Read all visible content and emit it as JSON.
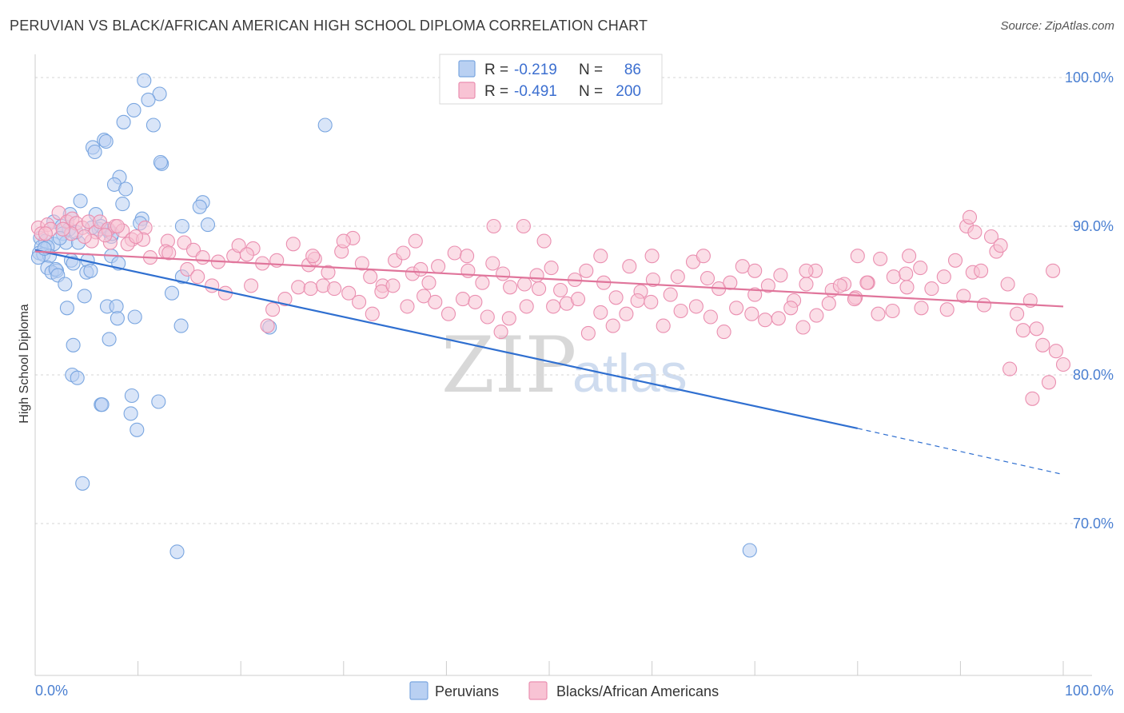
{
  "header": {
    "title": "PERUVIAN VS BLACK/AFRICAN AMERICAN HIGH SCHOOL DIPLOMA CORRELATION CHART",
    "source": "Source: ZipAtlas.com"
  },
  "watermark": {
    "zip": "ZIP",
    "atlas": "atlas"
  },
  "legend": {
    "r_label": "R =",
    "n_label": "N =",
    "rows": [
      {
        "series": "Peruvians",
        "r": "-0.219",
        "n": "86",
        "color": "#7aa6e0",
        "fill": "#b9d0f2"
      },
      {
        "series": "Blacks/African Americans",
        "r": "-0.491",
        "n": "200",
        "color": "#ea8fb0",
        "fill": "#f8c3d4"
      }
    ]
  },
  "chart_data": {
    "type": "scatter",
    "ylabel": "High School Diploma",
    "xlabel": "",
    "xlim": [
      0,
      100
    ],
    "ylim": [
      60.5,
      101.0
    ],
    "x_tick_labels": [
      "0.0%",
      "100.0%"
    ],
    "y_ticks": [
      {
        "value": 100,
        "label": "100.0%"
      },
      {
        "value": 90,
        "label": "90.0%"
      },
      {
        "value": 80,
        "label": "80.0%"
      },
      {
        "value": 70,
        "label": "70.0%"
      }
    ],
    "grid": "horizontal-dashed",
    "series": [
      {
        "name": "Peruvians",
        "color": "#7aa6e0",
        "trend": {
          "x": [
            0,
            80,
            100
          ],
          "y": [
            88.4,
            76.4,
            73.3
          ],
          "solid_until": 80,
          "line_color": "#2f6fd0"
        },
        "points": [
          [
            10.6,
            99.8
          ],
          [
            12.1,
            98.9
          ],
          [
            11.0,
            98.5
          ],
          [
            9.6,
            97.8
          ],
          [
            8.6,
            97.0
          ],
          [
            11.5,
            96.8
          ],
          [
            28.2,
            96.8
          ],
          [
            6.7,
            95.8
          ],
          [
            6.9,
            95.7
          ],
          [
            5.6,
            95.3
          ],
          [
            5.8,
            95.0
          ],
          [
            12.3,
            94.2
          ],
          [
            12.2,
            94.3
          ],
          [
            8.2,
            93.3
          ],
          [
            7.7,
            92.8
          ],
          [
            8.8,
            92.5
          ],
          [
            16.3,
            91.6
          ],
          [
            4.4,
            91.7
          ],
          [
            8.5,
            91.5
          ],
          [
            16.0,
            91.3
          ],
          [
            3.4,
            90.8
          ],
          [
            5.9,
            90.8
          ],
          [
            10.4,
            90.5
          ],
          [
            1.8,
            90.3
          ],
          [
            10.2,
            90.2
          ],
          [
            14.3,
            90.0
          ],
          [
            16.8,
            90.1
          ],
          [
            2.6,
            90.0
          ],
          [
            3.3,
            89.8
          ],
          [
            6.2,
            89.8
          ],
          [
            7.1,
            89.7
          ],
          [
            6.4,
            90.0
          ],
          [
            7.4,
            89.3
          ],
          [
            7.5,
            89.5
          ],
          [
            2.7,
            89.5
          ],
          [
            0.5,
            89.2
          ],
          [
            1.0,
            89.0
          ],
          [
            3.0,
            88.9
          ],
          [
            4.2,
            88.9
          ],
          [
            0.6,
            88.6
          ],
          [
            1.8,
            88.8
          ],
          [
            1.2,
            88.6
          ],
          [
            0.4,
            88.2
          ],
          [
            0.8,
            88.1
          ],
          [
            1.4,
            88.0
          ],
          [
            0.3,
            87.9
          ],
          [
            7.4,
            88.0
          ],
          [
            3.5,
            87.7
          ],
          [
            3.7,
            87.5
          ],
          [
            5.1,
            87.7
          ],
          [
            8.1,
            87.5
          ],
          [
            1.2,
            87.2
          ],
          [
            2.1,
            87.0
          ],
          [
            1.6,
            86.9
          ],
          [
            2.0,
            87.1
          ],
          [
            5.0,
            86.9
          ],
          [
            5.4,
            87.0
          ],
          [
            2.2,
            86.7
          ],
          [
            2.9,
            86.1
          ],
          [
            14.3,
            86.6
          ],
          [
            13.3,
            85.5
          ],
          [
            4.8,
            85.3
          ],
          [
            3.1,
            84.5
          ],
          [
            7.0,
            84.6
          ],
          [
            7.9,
            84.6
          ],
          [
            8.0,
            83.8
          ],
          [
            9.7,
            83.9
          ],
          [
            14.2,
            83.3
          ],
          [
            22.8,
            83.2
          ],
          [
            7.2,
            82.4
          ],
          [
            3.7,
            82.0
          ],
          [
            3.6,
            80.0
          ],
          [
            4.1,
            79.8
          ],
          [
            9.4,
            78.6
          ],
          [
            12.0,
            78.2
          ],
          [
            6.4,
            78.0
          ],
          [
            6.5,
            78.0
          ],
          [
            9.3,
            77.4
          ],
          [
            9.9,
            76.3
          ],
          [
            4.6,
            72.7
          ],
          [
            13.8,
            68.1
          ],
          [
            69.5,
            68.2
          ],
          [
            0.9,
            88.5
          ],
          [
            2.4,
            89.2
          ],
          [
            4.0,
            89.6
          ],
          [
            5.5,
            89.9
          ]
        ]
      },
      {
        "name": "Blacks/African Americans",
        "color": "#ea8fb0",
        "trend": {
          "x": [
            0,
            100
          ],
          "y": [
            88.3,
            84.6
          ],
          "line_color": "#e0759b"
        },
        "points": [
          [
            0.3,
            89.9
          ],
          [
            0.6,
            89.5
          ],
          [
            1.2,
            90.1
          ],
          [
            1.5,
            89.8
          ],
          [
            2.3,
            90.9
          ],
          [
            3.1,
            90.3
          ],
          [
            3.6,
            90.5
          ],
          [
            4.0,
            90.2
          ],
          [
            4.6,
            89.9
          ],
          [
            5.2,
            90.3
          ],
          [
            5.9,
            89.6
          ],
          [
            6.3,
            90.3
          ],
          [
            7.1,
            89.8
          ],
          [
            7.8,
            90.0
          ],
          [
            8.5,
            89.7
          ],
          [
            9.4,
            89.1
          ],
          [
            10.7,
            89.9
          ],
          [
            3.5,
            89.5
          ],
          [
            5.5,
            89.0
          ],
          [
            7.3,
            88.9
          ],
          [
            9.0,
            88.8
          ],
          [
            10.5,
            89.1
          ],
          [
            12.9,
            89.0
          ],
          [
            14.5,
            88.9
          ],
          [
            11.2,
            87.9
          ],
          [
            12.7,
            88.3
          ],
          [
            15.4,
            88.4
          ],
          [
            16.3,
            87.9
          ],
          [
            17.8,
            87.6
          ],
          [
            19.3,
            88.0
          ],
          [
            19.8,
            88.7
          ],
          [
            21.2,
            88.5
          ],
          [
            20.6,
            88.1
          ],
          [
            22.1,
            87.5
          ],
          [
            23.5,
            87.7
          ],
          [
            25.1,
            88.8
          ],
          [
            26.6,
            87.4
          ],
          [
            27.2,
            87.8
          ],
          [
            28.5,
            86.9
          ],
          [
            29.8,
            88.3
          ],
          [
            30.9,
            89.2
          ],
          [
            31.8,
            87.5
          ],
          [
            32.6,
            86.6
          ],
          [
            33.8,
            86.0
          ],
          [
            35.0,
            87.7
          ],
          [
            35.8,
            88.2
          ],
          [
            36.7,
            86.8
          ],
          [
            37.5,
            87.1
          ],
          [
            38.3,
            86.2
          ],
          [
            39.2,
            87.3
          ],
          [
            40.8,
            88.2
          ],
          [
            42.1,
            87.0
          ],
          [
            43.5,
            86.2
          ],
          [
            44.5,
            87.5
          ],
          [
            45.5,
            86.8
          ],
          [
            46.2,
            85.9
          ],
          [
            47.6,
            86.1
          ],
          [
            48.8,
            86.7
          ],
          [
            50.2,
            87.2
          ],
          [
            51.1,
            85.7
          ],
          [
            52.5,
            86.4
          ],
          [
            53.6,
            87.0
          ],
          [
            55.3,
            86.2
          ],
          [
            56.5,
            85.2
          ],
          [
            57.8,
            87.3
          ],
          [
            58.9,
            85.6
          ],
          [
            60.1,
            86.4
          ],
          [
            61.8,
            85.4
          ],
          [
            62.5,
            86.6
          ],
          [
            64.0,
            87.6
          ],
          [
            65.4,
            86.5
          ],
          [
            66.5,
            85.8
          ],
          [
            67.6,
            86.2
          ],
          [
            68.8,
            87.3
          ],
          [
            70.0,
            85.4
          ],
          [
            71.3,
            86.0
          ],
          [
            72.5,
            86.7
          ],
          [
            73.8,
            85.0
          ],
          [
            75.0,
            86.1
          ],
          [
            75.9,
            87.0
          ],
          [
            77.5,
            85.7
          ],
          [
            78.7,
            86.1
          ],
          [
            79.8,
            85.2
          ],
          [
            81.0,
            86.2
          ],
          [
            82.2,
            87.8
          ],
          [
            83.5,
            86.6
          ],
          [
            84.8,
            85.9
          ],
          [
            86.1,
            87.2
          ],
          [
            87.2,
            85.8
          ],
          [
            88.4,
            86.6
          ],
          [
            89.5,
            87.7
          ],
          [
            90.3,
            85.3
          ],
          [
            91.2,
            86.9
          ],
          [
            92.3,
            84.7
          ],
          [
            93.5,
            88.3
          ],
          [
            94.6,
            86.1
          ],
          [
            95.5,
            84.1
          ],
          [
            96.8,
            85.0
          ],
          [
            98.0,
            82.0
          ],
          [
            98.6,
            79.5
          ],
          [
            99.3,
            81.6
          ],
          [
            100.0,
            80.7
          ],
          [
            97.4,
            83.1
          ],
          [
            96.1,
            83.0
          ],
          [
            94.8,
            80.4
          ],
          [
            97.0,
            78.4
          ],
          [
            1.0,
            89.5
          ],
          [
            2.7,
            89.8
          ],
          [
            4.8,
            89.3
          ],
          [
            6.8,
            89.4
          ],
          [
            8.0,
            90.0
          ],
          [
            9.8,
            89.3
          ],
          [
            13.0,
            88.2
          ],
          [
            14.8,
            87.1
          ],
          [
            15.8,
            86.6
          ],
          [
            17.2,
            86.0
          ],
          [
            18.5,
            85.5
          ],
          [
            21.0,
            86.0
          ],
          [
            23.1,
            84.4
          ],
          [
            22.6,
            83.3
          ],
          [
            24.3,
            85.1
          ],
          [
            25.6,
            85.9
          ],
          [
            26.8,
            85.8
          ],
          [
            28.0,
            86.0
          ],
          [
            29.1,
            85.8
          ],
          [
            30.5,
            85.5
          ],
          [
            31.5,
            84.9
          ],
          [
            32.8,
            84.1
          ],
          [
            33.7,
            85.6
          ],
          [
            34.8,
            86.0
          ],
          [
            36.2,
            84.6
          ],
          [
            37.8,
            85.3
          ],
          [
            38.9,
            84.9
          ],
          [
            40.2,
            84.1
          ],
          [
            41.6,
            85.1
          ],
          [
            42.8,
            84.9
          ],
          [
            44.0,
            83.9
          ],
          [
            45.3,
            82.9
          ],
          [
            46.1,
            83.8
          ],
          [
            47.8,
            84.6
          ],
          [
            49.0,
            85.8
          ],
          [
            50.4,
            84.6
          ],
          [
            51.7,
            84.8
          ],
          [
            52.8,
            85.1
          ],
          [
            53.8,
            82.8
          ],
          [
            55.0,
            84.2
          ],
          [
            56.2,
            83.3
          ],
          [
            57.5,
            84.1
          ],
          [
            58.6,
            85.0
          ],
          [
            59.9,
            84.9
          ],
          [
            61.1,
            83.3
          ],
          [
            62.8,
            84.3
          ],
          [
            64.3,
            84.6
          ],
          [
            65.7,
            83.9
          ],
          [
            67.0,
            82.9
          ],
          [
            68.2,
            84.5
          ],
          [
            69.7,
            84.1
          ],
          [
            71.0,
            83.7
          ],
          [
            72.3,
            83.8
          ],
          [
            73.5,
            84.5
          ],
          [
            74.7,
            83.2
          ],
          [
            76.0,
            84.0
          ],
          [
            77.2,
            84.8
          ],
          [
            78.3,
            86.0
          ],
          [
            79.7,
            85.1
          ],
          [
            80.9,
            86.2
          ],
          [
            82.0,
            84.1
          ],
          [
            83.4,
            84.3
          ],
          [
            84.7,
            86.8
          ],
          [
            86.2,
            84.5
          ],
          [
            88.7,
            84.4
          ],
          [
            90.6,
            90.0
          ],
          [
            90.9,
            90.6
          ],
          [
            91.4,
            89.6
          ],
          [
            93.0,
            89.3
          ],
          [
            93.9,
            88.7
          ],
          [
            44.6,
            90.0
          ],
          [
            47.5,
            90.0
          ],
          [
            49.5,
            89.0
          ],
          [
            30.0,
            89.0
          ],
          [
            27.0,
            88.0
          ],
          [
            37.0,
            89.0
          ],
          [
            42.0,
            88.0
          ],
          [
            55.0,
            88.0
          ],
          [
            60.0,
            88.0
          ],
          [
            65.0,
            88.0
          ],
          [
            70.0,
            87.0
          ],
          [
            75.0,
            87.0
          ],
          [
            80.0,
            88.0
          ],
          [
            85.0,
            88.0
          ],
          [
            92.0,
            87.0
          ],
          [
            99.0,
            87.0
          ]
        ]
      }
    ]
  },
  "bottom_legend": [
    {
      "label": "Peruvians",
      "color": "#7aa6e0",
      "fill": "#b9d0f2"
    },
    {
      "label": "Blacks/African Americans",
      "color": "#ea8fb0",
      "fill": "#f8c3d4"
    }
  ]
}
